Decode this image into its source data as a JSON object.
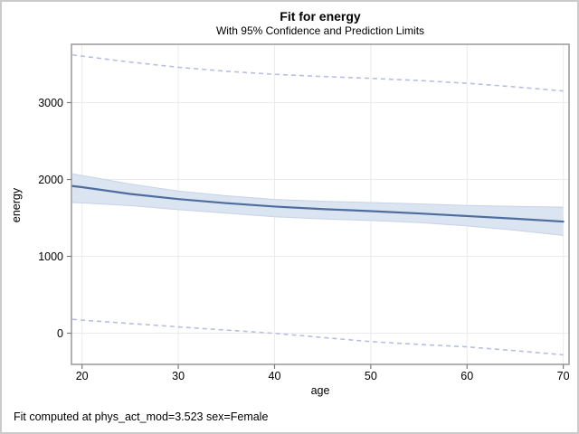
{
  "title": "Fit for energy",
  "subtitle": "With 95% Confidence and Prediction Limits",
  "footnote": "Fit computed at phys_act_mod=3.523 sex=Female",
  "colors": {
    "background": "#ffffff",
    "outer_border": "#cbcbcb",
    "frame": "#989898",
    "grid": "#ebebeb",
    "tick": "#7d7d7d",
    "fit_line": "#4d6d9d",
    "confidence_band": "#dbe4f1",
    "confidence_band_edge": "#c7d3e8",
    "prediction_line": "#b8bee2",
    "text": "#000000"
  },
  "chart_data": {
    "type": "line",
    "title": "Fit for energy",
    "subtitle": "With 95% Confidence and Prediction Limits",
    "xlabel": "age",
    "ylabel": "energy",
    "footnote": "Fit computed at phys_act_mod=3.523 sex=Female",
    "grid": true,
    "legend_position": "none",
    "xlim": [
      18.9,
      70.6
    ],
    "ylim": [
      -406,
      3759
    ],
    "xticks": [
      20,
      30,
      40,
      50,
      60,
      70
    ],
    "yticks": [
      0,
      1000,
      2000,
      3000
    ],
    "x": [
      19,
      20,
      25,
      30,
      35,
      40,
      45,
      50,
      55,
      60,
      65,
      70
    ],
    "series": [
      {
        "name": "95% Confidence Limits",
        "type": "band",
        "upper": [
          2075,
          2052,
          1942,
          1848,
          1788,
          1740,
          1716,
          1700,
          1682,
          1662,
          1650,
          1640
        ],
        "lower": [
          1700,
          1694,
          1660,
          1608,
          1562,
          1515,
          1487,
          1466,
          1440,
          1396,
          1340,
          1272
        ]
      },
      {
        "name": "Fit",
        "type": "line",
        "values": [
          1915,
          1900,
          1812,
          1745,
          1692,
          1648,
          1615,
          1588,
          1558,
          1524,
          1490,
          1452
        ]
      },
      {
        "name": "95% Prediction Limits (upper)",
        "type": "dashed",
        "values": [
          3622,
          3605,
          3528,
          3460,
          3408,
          3368,
          3340,
          3316,
          3288,
          3252,
          3205,
          3152
        ]
      },
      {
        "name": "95% Prediction Limits (lower)",
        "type": "dashed",
        "values": [
          180,
          170,
          126,
          82,
          40,
          -2,
          -56,
          -110,
          -146,
          -178,
          -228,
          -282
        ]
      }
    ]
  }
}
